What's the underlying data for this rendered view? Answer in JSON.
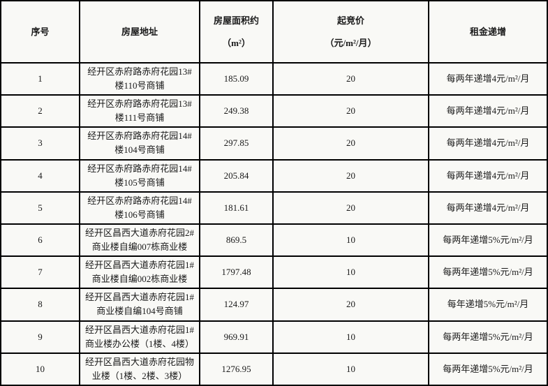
{
  "table": {
    "headers": [
      {
        "label": "序号",
        "unit": ""
      },
      {
        "label": "房屋地址",
        "unit": ""
      },
      {
        "label": "房屋面积约",
        "unit": "（m²）"
      },
      {
        "label": "起竞价",
        "unit": "（元/m²/月）"
      },
      {
        "label": "租金递增",
        "unit": ""
      }
    ],
    "rows": [
      {
        "no": "1",
        "address": "经开区赤府路赤府花园13#楼110号商铺",
        "area": "185.09",
        "price": "20",
        "increment": "每两年递增4元/m²/月"
      },
      {
        "no": "2",
        "address": "经开区赤府路赤府花园13#楼111号商铺",
        "area": "249.38",
        "price": "20",
        "increment": "每两年递增4元/m²/月"
      },
      {
        "no": "3",
        "address": "经开区赤府路赤府花园14#楼104号商铺",
        "area": "297.85",
        "price": "20",
        "increment": "每两年递增4元/m²/月"
      },
      {
        "no": "4",
        "address": "经开区赤府路赤府花园14#楼105号商铺",
        "area": "205.84",
        "price": "20",
        "increment": "每两年递增4元/m²/月"
      },
      {
        "no": "5",
        "address": "经开区赤府路赤府花园14#楼106号商铺",
        "area": "181.61",
        "price": "20",
        "increment": "每两年递增4元/m²/月"
      },
      {
        "no": "6",
        "address": "经开区昌西大道赤府花园2#商业楼自编007栋商业楼",
        "area": "869.5",
        "price": "10",
        "increment": "每两年递增5%元/m²/月"
      },
      {
        "no": "7",
        "address": "经开区昌西大道赤府花园1#商业楼自编002栋商业楼",
        "area": "1797.48",
        "price": "10",
        "increment": "每两年递增5%元/m²/月"
      },
      {
        "no": "8",
        "address": "经开区昌西大道赤府花园1#商业楼自编104号商铺",
        "area": "124.97",
        "price": "20",
        "increment": "每年递增5%元/m²/月"
      },
      {
        "no": "9",
        "address": "经开区昌西大道赤府花园1#商业楼办公楼（1楼、4楼）",
        "area": "969.91",
        "price": "10",
        "increment": "每两年递增5%元/m²/月"
      },
      {
        "no": "10",
        "address": "经开区昌西大道赤府花园物业楼（1楼、2楼、3楼）",
        "area": "1276.95",
        "price": "10",
        "increment": "每两年递增5%元/m²/月"
      }
    ]
  },
  "colors": {
    "border": "#000000",
    "cell_background": "#f9f9f6",
    "text": "#1a1a1a"
  }
}
